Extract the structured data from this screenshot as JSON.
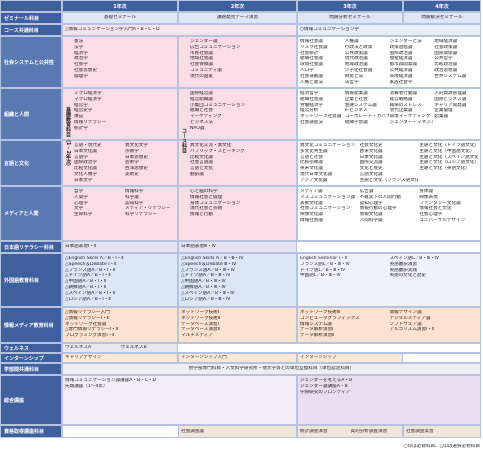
{
  "header": {
    "years": [
      "1年次",
      "2年次",
      "3年次",
      "4年次"
    ]
  },
  "basic_label": "基礎教育科目（1・2年次）",
  "course_label": "コース科目",
  "rows": [
    {
      "label": "ゼミナール科目",
      "cells": [
        [
          "基礎ゼミナール"
        ],
        [
          "課題発見テーマ演習"
        ],
        [
          "問題分析ゼミナール"
        ],
        [
          "問題解決ゼミナール"
        ]
      ]
    },
    {
      "label": "コース共通科目",
      "cells": [
        [
          "△情報コミュニケーション学入門A・B・C・D"
        ],
        [
          "○情報コミュニケーション学"
        ]
      ]
    },
    {
      "label": "社会システムと公共性",
      "cells": [
        [
          "憲法",
          "法学",
          "経済学",
          "政治学",
          "社会学",
          "社会思想史",
          "倫理学"
        ],
        [
          "ジェンダー論",
          "広告コミュニケーション",
          "市民社会論",
          "地域社会論",
          "社会保障論",
          "コミュニティ論",
          "現代の国家"
        ],
        [
          "情報社会論",
          "リスク社会論",
          "社会統計",
          "組織社会論",
          "環境社会論",
          "人口学",
          "社会運動論",
          "人権と憲法",
          "人権論",
          "行政法と政策",
          "公共政策論",
          "現代政治論",
          "地域政治論",
          "少子化社会論",
          "財産と法",
          "法哲学",
          "ジェンダーと法",
          "政策過程論",
          "国際政治論",
          "福祉経済論",
          "都市再開発論",
          "公共経済論",
          "環境経済論",
          "家族社会学",
          "地域経済論",
          "社会政策論",
          "国際関係論",
          "公共哲学",
          "比較政治論",
          "政治思想論",
          "世界システム論"
        ]
      ]
    },
    {
      "label": "組織と人間",
      "cells": [
        [
          "ミクロ経済学",
          "マクロ経済学",
          "経営学",
          "経営史学",
          "簿記",
          "情報リテラシー",
          "統計学"
        ],
        [
          "国際経営論",
          "経営組織論",
          "小集団コミュニケーション",
          "組織と社会",
          "マーケティング",
          "ビジネス法",
          "NPO論"
        ],
        [
          "経済哲学",
          "組織社会論",
          "労働経済学",
          "経営分析",
          "ネットワーク社会論",
          "社会調査法",
          "情報産業論",
          "企業と社会",
          "金融システム論",
          "e-ビジネス",
          "コーポレート・ガバナンス",
          "組織学習論",
          "消費者行動論",
          "経営戦略論",
          "職場のストレス",
          "現代企業論",
          "環境マーケティング",
          "ジェンダー・マネジメント",
          "人的資源管理論",
          "国際ビジネス論",
          "キャリア開発論",
          "企業倫理",
          "起業論"
        ]
      ]
    },
    {
      "label": "言語と文化",
      "cells": [
        [
          "言語・現代史",
          "日本文化論",
          "言語学",
          "国際政治学",
          "比較文化論",
          "文化人類学",
          "日本文学",
          "異文化文学",
          "宗教学",
          "日本思想史",
          "芸術学",
          "西洋思想史",
          "美術史"
        ],
        [
          "異文化交流・異文化",
          "パブリック・スピーキング",
          "比較文化論",
          "社会言語論",
          "言語と文化",
          "翻訳論"
        ],
        [
          "異文化コミュニケーション",
          "多文化共生論",
          "言語と社会",
          "比較宗教論",
          "英米文化論",
          "現代日本文化論",
          "アジア文化論",
          "社会文化史",
          "欧米文化論",
          "日本文化論",
          "国際交流論",
          "文化と歴史",
          "言語文化論",
          "主題と文化（フランス語文化）",
          "主題と文化（ドイツ語文化）",
          "主題と文化（中国語文化）",
          "主題と文化（スペイン語文化）",
          "主題と文化（ロシア語文化）",
          "主題と文化（英語文化）"
        ]
      ]
    },
    {
      "label": "メディアと人間",
      "cells": [
        [
          "哲学",
          "人間学",
          "心理学",
          "文学",
          "生命科学",
          "情報科学",
          "科学論",
          "認知科学",
          "メディア・リテラシー",
          "科学リテラシー"
        ],
        [
          "心と脳の科学",
          "情報社会と倫理",
          "身体コミュニケーション",
          "現代社会と宗教",
          "情報と行動"
        ],
        [
          "メディア論",
          "マスコミュニケーション論",
          "表象文化論",
          "社会コミュニケーション",
          "映像文化論",
          "情報社会論",
          "広告論",
          "不確実下の人間行動",
          "認知心理学",
          "情報行動の心理学",
          "情報文化論",
          "人間科学論",
          "身体論",
          "映像表現",
          "ファンタジー文化論",
          "情報社会と文化",
          "社会心理学",
          "ユニバーサルデザイン"
        ]
      ]
    },
    {
      "label": "日本語リテラシー科目",
      "cells": [
        [
          "日本語表現Ⅰ・Ⅱ"
        ],
        [
          "日本語表現Ⅲ・Ⅳ"
        ]
      ]
    },
    {
      "label": "外国語教育科目",
      "cells": [
        [
          "△English Skills A／B・Ⅰ・Ⅱ",
          "△Speech＆Debate Ⅰ・Ⅱ",
          "△フランス語A／B・Ⅰ・Ⅱ",
          "△ドイツ語A／B・Ⅰ・Ⅱ",
          "△中国語A／B・Ⅰ・Ⅱ",
          "△朝鮮語A／B・Ⅰ・Ⅱ",
          "△スペイン語A／B・Ⅰ・Ⅱ",
          "△ロシア語A／B・Ⅰ・Ⅱ"
        ],
        [
          "△English Skills A／B・Ⅲ・Ⅳ",
          "△Speech＆Debate Ⅲ・Ⅳ",
          "△フランス語A／B・Ⅲ・Ⅳ",
          "△ドイツ語A／B・Ⅲ・Ⅳ",
          "△中国語A／B・Ⅲ・Ⅳ",
          "△朝鮮語A／B・Ⅲ・Ⅳ",
          "△スペイン語A／B・Ⅲ・Ⅳ",
          "△ロシア語A／B・Ⅲ・Ⅳ"
        ],
        [
          "English Seminar Ⅰ・Ⅱ",
          "フランス語L／B・Ⅲ・Ⅳ",
          "ドイツ語L／B・Ⅲ・Ⅳ",
          "中国語L／B・Ⅲ・Ⅳ",
          "スペイン語L／B・Ⅲ・Ⅳ",
          "英語翻訳演習",
          "英語翻訳実践",
          "英語の文化と歴史"
        ]
      ]
    },
    {
      "label": "情報メディア教育科目",
      "cells": [
        [
          "△情報リテラシー入門",
          "△情報リテラシーⅠ・Ⅱ",
          "ネットワーク社会論",
          "△専門情報リテラシーⅠ・Ⅱ",
          "プログラミング演習Ⅰ・Ⅱ"
        ],
        [
          "ネットワーク技術Ⅰ",
          "ネットワーク技術Ⅱ",
          "データベース演習Ⅰ",
          "データベース演習Ⅱ",
          "マルチメディア"
        ],
        [
          "ネットワーク技術Ⅲ",
          "コンピュータグラフィックス",
          "情報システム論",
          "データ解析演習Ⅰ",
          "データ解析演習Ⅱ",
          "情報デザイン論",
          "デジタルメディア論",
          "ソフトウェア論",
          "アルゴリズム演習Ⅰ・Ⅱ"
        ]
      ]
    },
    {
      "label": "ウェルネス",
      "cells": [
        [
          "ウェルネスA",
          "ウェルネスB"
        ]
      ]
    },
    {
      "label": "インターンシップ",
      "cells": [
        [
          "キャリアデザイン"
        ],
        [
          "インターンシップ入門"
        ],
        [
          "インターンシップ"
        ]
      ]
    },
    {
      "label": "学部間共通科目",
      "cells": [
        [
          "他学部専門科目・人文科学研究所・他大学等との単位互換科目（単位認定科目）"
        ]
      ]
    },
    {
      "label": "総合講座",
      "cells": [
        [
          "情報コミュニケーション論講座A・B・C・D",
          "先端講座（1〜4年）"
        ],
        [
          "ジェンダーを考えるA・B",
          "ジェンダー論講座A・B",
          "学際研究のフロンティア"
        ]
      ]
    },
    {
      "label": "資格取得講座科目",
      "cells": [
        [
          "社会調査論"
        ],
        [
          "統計調査演習",
          "質的分析調査演習"
        ],
        [
          "社会調査実習"
        ]
      ]
    }
  ],
  "footnote": "○印は必修科目、△印は選択必修科目"
}
